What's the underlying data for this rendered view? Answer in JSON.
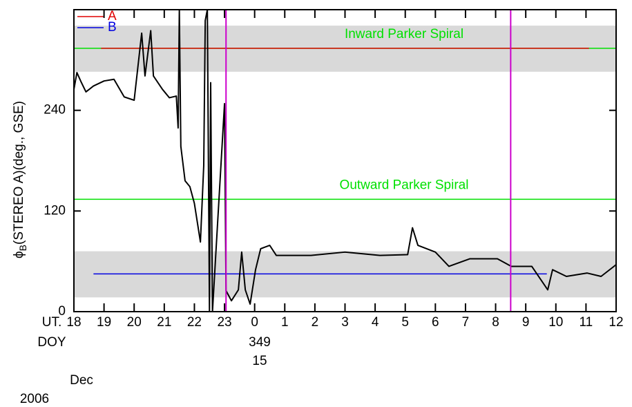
{
  "chart_data": {
    "type": "line",
    "ylabel": {
      "symbol": "ϕ",
      "subscript": "B",
      "text": "(STEREO A)(deg., GSE)"
    },
    "xlim": [
      18,
      36
    ],
    "ylim": [
      0,
      360
    ],
    "xticks": [
      18,
      19,
      20,
      21,
      22,
      23,
      {
        "value": 24,
        "label": "0"
      },
      {
        "value": 25,
        "label": "1"
      },
      {
        "value": 26,
        "label": "2"
      },
      {
        "value": 27,
        "label": "3"
      },
      {
        "value": 28,
        "label": "4"
      },
      {
        "value": 29,
        "label": "5"
      },
      {
        "value": 30,
        "label": "6"
      },
      {
        "value": 31,
        "label": "7"
      },
      {
        "value": 32,
        "label": "8"
      },
      {
        "value": 33,
        "label": "9"
      },
      {
        "value": 34,
        "label": "10"
      },
      {
        "value": 35,
        "label": "11"
      },
      {
        "value": 36,
        "label": "12"
      }
    ],
    "yticks": [
      0,
      120,
      240
    ],
    "x_annotations": {
      "ut": "UT.",
      "doy_label": "DOY",
      "doy": "349",
      "day": "15",
      "month": "Dec",
      "year": "2006"
    },
    "bands": [
      [
        286,
        341
      ],
      [
        17,
        72
      ]
    ],
    "band_color": "#d9d9d9",
    "reference_lines": [
      {
        "label": "Inward Parker Spiral",
        "value": 314,
        "color": "#00e000"
      },
      {
        "label": "Outward Parker Spiral",
        "value": 134,
        "color": "#00e000"
      }
    ],
    "vlines": [
      23.05,
      32.5
    ],
    "vline_color": "#cc00cc",
    "series": [
      {
        "name": "A",
        "color": "#e00000",
        "x": [
          18.9,
          35.1
        ],
        "values": [
          314,
          314
        ]
      },
      {
        "name": "B",
        "color": "#0000e0",
        "x": [
          18.65,
          33.7
        ],
        "values": [
          45,
          45
        ]
      },
      {
        "color": "#000000",
        "x": [
          18.0,
          18.1,
          18.25,
          18.4,
          18.65,
          19.0,
          19.33,
          19.67,
          20.0,
          20.25,
          20.36,
          20.55,
          20.64,
          20.94,
          21.17,
          21.4,
          21.46,
          21.5,
          21.55,
          21.69,
          21.85,
          22.0,
          22.2,
          22.31,
          22.36,
          22.43,
          22.5,
          22.54,
          22.6,
          23.0,
          23.05,
          23.23,
          23.46,
          23.57,
          23.69,
          23.85,
          24.03,
          24.2,
          24.5,
          24.72,
          25.87,
          27.0,
          28.16,
          29.08,
          29.24,
          29.42,
          30.0,
          30.45,
          31.14,
          32.06,
          32.52,
          33.2,
          33.73,
          33.89,
          34.35,
          35.04,
          35.5,
          36.0
        ],
        "values": [
          265,
          285,
          273,
          262,
          269,
          275,
          277,
          256,
          252,
          332,
          281,
          335,
          281,
          265,
          255,
          257,
          219,
          360,
          197,
          156,
          149,
          129,
          83,
          174,
          347,
          360,
          0,
          273,
          0,
          248,
          25,
          13,
          26,
          71,
          26,
          9,
          50,
          75,
          79,
          67,
          67,
          71,
          67,
          68,
          100,
          79,
          71,
          54,
          63,
          63,
          54,
          54,
          26,
          50,
          42,
          46,
          42,
          56
        ]
      }
    ]
  }
}
